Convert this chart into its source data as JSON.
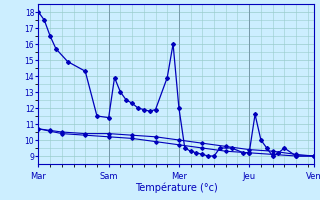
{
  "xlabel": "Température (°c)",
  "bg_color": "#cceeff",
  "line_color": "#0000bb",
  "grid_color": "#99cccc",
  "xtick_labels": [
    "Mar",
    "Sam",
    "Mer",
    "Jeu",
    "Ven"
  ],
  "xtick_positions": [
    0,
    12,
    24,
    36,
    47
  ],
  "ylim": [
    8.5,
    18.5
  ],
  "yticks": [
    9,
    10,
    11,
    12,
    13,
    14,
    15,
    16,
    17,
    18
  ],
  "series1_x": [
    0,
    1,
    2,
    3,
    5,
    8,
    10,
    12,
    13,
    14,
    15,
    16,
    17,
    18,
    19,
    20,
    22,
    23,
    24,
    25,
    26,
    27,
    28,
    29,
    30,
    31,
    33,
    35,
    36,
    37,
    38,
    39,
    40,
    41,
    42,
    44,
    47
  ],
  "series1_y": [
    18,
    17.5,
    16.5,
    15.7,
    14.9,
    14.3,
    11.5,
    11.4,
    13.9,
    13.0,
    12.5,
    12.3,
    12.0,
    11.9,
    11.8,
    11.9,
    13.9,
    16.0,
    12.0,
    9.5,
    9.3,
    9.2,
    9.1,
    9.0,
    9.0,
    9.5,
    9.5,
    9.2,
    9.2,
    11.6,
    10.0,
    9.5,
    9.0,
    9.2,
    9.5,
    9.0,
    9.0
  ],
  "series2_x": [
    0,
    2,
    4,
    8,
    12,
    16,
    20,
    24,
    28,
    32,
    36,
    40,
    44,
    47
  ],
  "series2_y": [
    10.7,
    10.6,
    10.5,
    10.4,
    10.4,
    10.3,
    10.2,
    10.0,
    9.8,
    9.6,
    9.4,
    9.3,
    9.1,
    9.0
  ],
  "series3_x": [
    0,
    2,
    4,
    8,
    12,
    16,
    20,
    24,
    28,
    32,
    36,
    40,
    44,
    47
  ],
  "series3_y": [
    10.7,
    10.55,
    10.4,
    10.3,
    10.2,
    10.1,
    9.9,
    9.7,
    9.5,
    9.3,
    9.2,
    9.1,
    9.0,
    9.0
  ]
}
